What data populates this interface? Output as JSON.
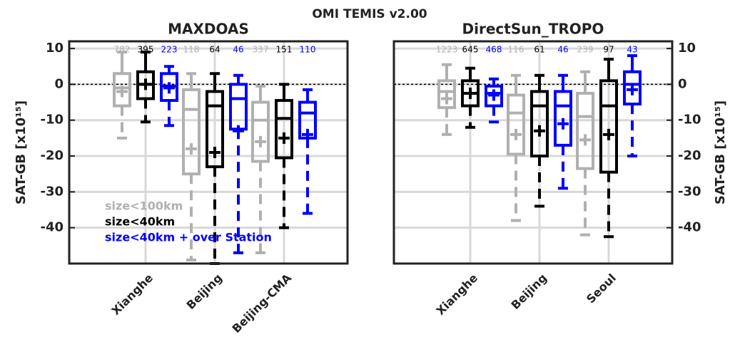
{
  "title": "OMI TEMIS v2.00",
  "chart_data": [
    {
      "type": "box",
      "title": "MAXDOAS",
      "ylabel": "SAT-GB [x10¹⁵]",
      "yaxis_side": "left",
      "categories": [
        "Xianghe",
        "Beijing",
        "Beijing-CMA"
      ],
      "ylim": [
        -50,
        12
      ],
      "yticks": [
        -40,
        -30,
        -20,
        -10,
        0,
        10
      ],
      "grid": true,
      "zero_line": true,
      "legend": true,
      "legend_loc": "lower left",
      "series": [
        {
          "name": "size<100km",
          "color": "#b0b0b0",
          "counts": [
            782,
            118,
            337
          ],
          "whislo": [
            -15,
            -49,
            -47
          ],
          "q1": [
            -6,
            -25,
            -21.5
          ],
          "med": [
            -1,
            -7,
            -10
          ],
          "q3": [
            3,
            -1.5,
            -5
          ],
          "whishi": [
            9,
            3,
            -0.5
          ],
          "mean": [
            -2,
            -18,
            -16
          ]
        },
        {
          "name": "size<40km",
          "color": "#000000",
          "counts": [
            395,
            64,
            151
          ],
          "whislo": [
            -10.5,
            -50,
            -40
          ],
          "q1": [
            -4,
            -23,
            -20.5
          ],
          "med": [
            0,
            -6,
            -9.5
          ],
          "q3": [
            3.5,
            -2,
            -4.5
          ],
          "whishi": [
            9,
            3,
            0
          ],
          "mean": [
            0,
            -19,
            -15
          ]
        },
        {
          "name": "size<40km + over Station",
          "color": "#0000ff",
          "counts": [
            223,
            46,
            110
          ],
          "whislo": [
            -11.5,
            -47,
            -36
          ],
          "q1": [
            -4.5,
            -12.5,
            -15
          ],
          "med": [
            -0.5,
            -4,
            -8
          ],
          "q3": [
            3,
            0,
            -5
          ],
          "whishi": [
            5,
            2.5,
            -1.5
          ],
          "mean": [
            -1,
            -13,
            -14
          ]
        }
      ]
    },
    {
      "type": "box",
      "title": "DirectSun_TROPO",
      "ylabel": "SAT-GB [x10¹⁵]",
      "yaxis_side": "right",
      "categories": [
        "Xianghe",
        "Beijing",
        "Seoul"
      ],
      "ylim": [
        -50,
        12
      ],
      "yticks": [
        -40,
        -30,
        -20,
        -10,
        0,
        10
      ],
      "grid": true,
      "zero_line": true,
      "legend": false,
      "series": [
        {
          "color": "#b0b0b0",
          "counts": [
            1223,
            116,
            239
          ],
          "whislo": [
            -14,
            -38,
            -42
          ],
          "q1": [
            -6.5,
            -19.5,
            -23.5
          ],
          "med": [
            -2,
            -8,
            -9
          ],
          "q3": [
            1,
            -3,
            -2.5
          ],
          "whishi": [
            5.5,
            2.5,
            3.5
          ],
          "mean": [
            -4,
            -14,
            -15.5
          ]
        },
        {
          "color": "#000000",
          "counts": [
            645,
            61,
            97
          ],
          "whislo": [
            -12,
            -34,
            -42.5
          ],
          "q1": [
            -6,
            -20,
            -24.5
          ],
          "med": [
            -2.5,
            -6,
            -6
          ],
          "q3": [
            1,
            -2,
            1
          ],
          "whishi": [
            4.5,
            2.5,
            7
          ],
          "mean": [
            -2.5,
            -13,
            -14
          ]
        },
        {
          "color": "#0000ff",
          "counts": [
            468,
            46,
            43
          ],
          "whislo": [
            -10.5,
            -29,
            -20
          ],
          "q1": [
            -6,
            -17,
            -5.5
          ],
          "med": [
            -2.5,
            -6,
            0
          ],
          "q3": [
            -0.5,
            -2,
            3.5
          ],
          "whishi": [
            1.5,
            2.5,
            8
          ],
          "mean": [
            -3,
            -11,
            -1.5
          ]
        }
      ]
    }
  ]
}
